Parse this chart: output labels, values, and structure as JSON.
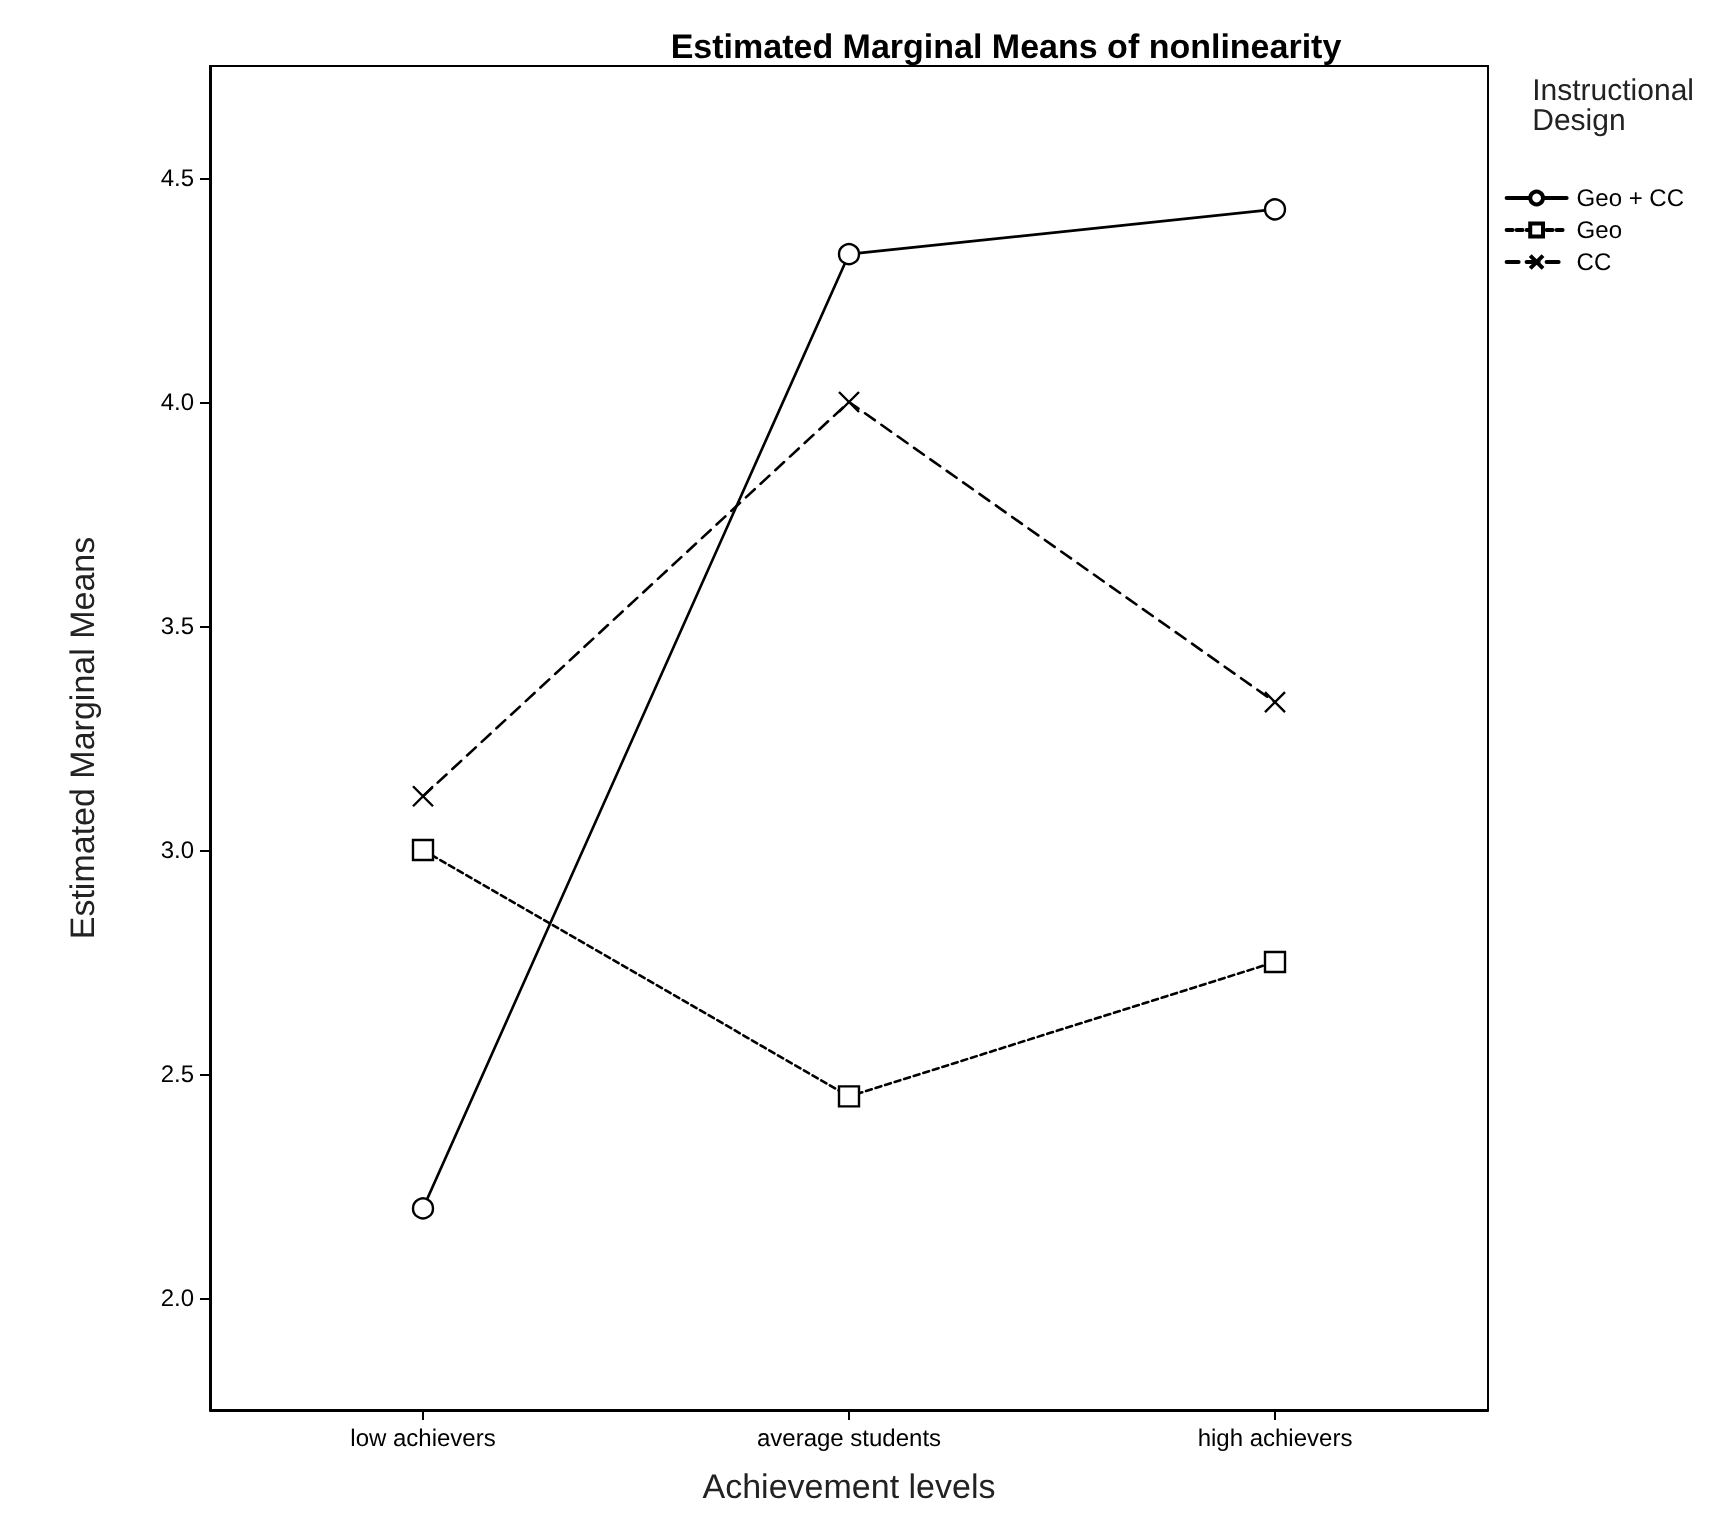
{
  "chart_data": {
    "type": "line",
    "title": "Estimated Marginal Means of nonlinearity",
    "xlabel": "Achievement levels",
    "ylabel": "Estimated Marginal Means",
    "legend_title": "Instructional Design",
    "categories": [
      "low achievers",
      "average students",
      "high achievers"
    ],
    "series": [
      {
        "name": "Geo + CC",
        "color": "#000000",
        "marker": "circle",
        "line_style": "solid",
        "values": [
          2.2,
          4.33,
          4.43
        ]
      },
      {
        "name": "Geo",
        "color": "#000000",
        "marker": "square",
        "line_style": "dotted",
        "values": [
          3.0,
          2.45,
          2.75
        ]
      },
      {
        "name": "CC",
        "color": "#000000",
        "marker": "cross",
        "line_style": "dashed",
        "values": [
          3.12,
          4.0,
          3.33
        ]
      }
    ],
    "ylim": [
      1.75,
      4.75
    ],
    "yticks": [
      {
        "value": 2,
        "label": "2.0"
      },
      {
        "value": 2.5,
        "label": "2.5"
      },
      {
        "value": 3,
        "label": "3.0"
      },
      {
        "value": 3.5,
        "label": "3.5"
      },
      {
        "value": 4,
        "label": "4.0"
      },
      {
        "value": 4.5,
        "label": "4.5"
      }
    ],
    "grid": false,
    "legend": "right"
  }
}
